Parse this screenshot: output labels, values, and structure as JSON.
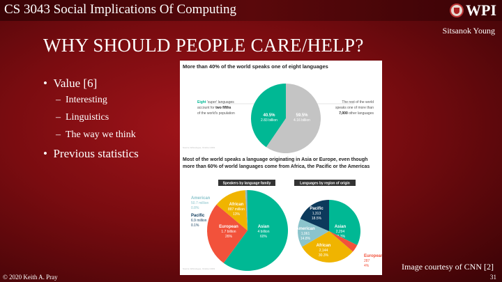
{
  "header": {
    "course": "CS 3043 Social Implications Of Computing",
    "logo_text": "WPI",
    "author": "Sitsanok Young"
  },
  "slide": {
    "title": "WHY SHOULD PEOPLE CARE/HELP?",
    "bullets": [
      {
        "label": "Value [6]",
        "sub": [
          "Interesting",
          "Linguistics",
          "The way we think"
        ]
      },
      {
        "label": "Previous statistics"
      }
    ],
    "courtesy": "Image courtesy of CNN [2]"
  },
  "footer": {
    "copyright": "© 2020 Keith A. Pray",
    "page": "31"
  },
  "colors": {
    "green": "#00b894",
    "gray": "#c4c4c4",
    "red": "#f2523b",
    "yellow": "#f0b400",
    "teal": "#8bc4cc",
    "navy": "#0d3a5c"
  },
  "chart_data": [
    {
      "type": "pie",
      "title": "More than 40% of the world speaks one of eight languages",
      "slices": [
        {
          "label": "40.5%",
          "sub": "2.83 billion",
          "value": 40.5
        },
        {
          "label": "59.5%",
          "sub": "4.16 billion",
          "value": 59.5
        }
      ],
      "left_note": [
        "Eight",
        "'super' languages",
        "account for",
        "two fifths",
        "of the world's population"
      ],
      "right_note": [
        "The rest of the world",
        "speaks one of more than",
        "7,000",
        "other languages"
      ],
      "source": "Source: Ethnologue, October 2019"
    },
    {
      "type": "pie",
      "heading": "Most of the world speaks a language originating in Asia or Europe, even though more than 60% of world languages come from Africa, the Pacific or the Americas",
      "title": "Speakers by language family",
      "slices": [
        {
          "label": "Asian",
          "sub": "4 billion",
          "pct": "60%",
          "value": 60
        },
        {
          "label": "European",
          "sub": "1.7 billion",
          "pct": "26%",
          "value": 26
        },
        {
          "label": "African",
          "sub": "887 million",
          "pct": "13%",
          "value": 13
        },
        {
          "label": "American",
          "sub": "50.7 million",
          "pct": "0.8%",
          "value": 0.8
        },
        {
          "label": "Pacific",
          "sub": "6.9 million",
          "pct": "0.1%",
          "value": 0.1
        }
      ]
    },
    {
      "type": "pie",
      "title": "Languages by region of origin",
      "slices": [
        {
          "label": "Asian",
          "sub": "2,294",
          "pct": "32.3%",
          "value": 32.3
        },
        {
          "label": "European",
          "sub": "287",
          "pct": "4%",
          "value": 4
        },
        {
          "label": "African",
          "sub": "2,144",
          "pct": "30.3%",
          "value": 30.3
        },
        {
          "label": "American",
          "sub": "1,061",
          "pct": "14.8%",
          "value": 14.8
        },
        {
          "label": "Pacific",
          "sub": "1,313",
          "pct": "18.5%",
          "value": 18.5
        }
      ],
      "source": "Source: Ethnologue, October 2019"
    }
  ]
}
